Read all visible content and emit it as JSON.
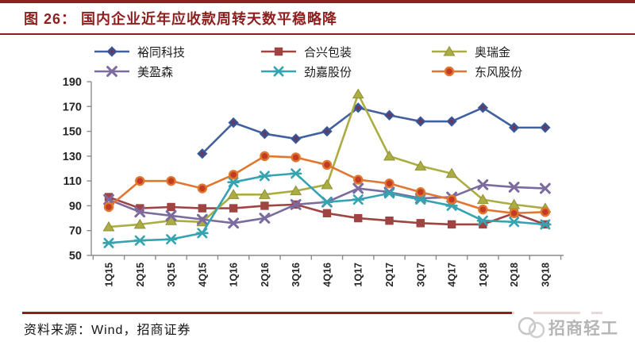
{
  "header": {
    "figure_label": "图 26：",
    "title": "国内企业近年应收款周转天数平稳略降"
  },
  "chart_data": {
    "type": "line",
    "title": "",
    "xlabel": "",
    "ylabel": "",
    "ylim": [
      50,
      190
    ],
    "yticks": [
      50,
      70,
      90,
      110,
      130,
      150,
      170,
      190
    ],
    "grid": false,
    "legend_position": "top",
    "categories": [
      "1Q15",
      "2Q15",
      "3Q15",
      "4Q15",
      "1Q16",
      "2Q16",
      "3Q16",
      "4Q16",
      "1Q17",
      "2Q17",
      "3Q17",
      "4Q17",
      "1Q18",
      "2Q18",
      "3Q18"
    ],
    "series": [
      {
        "name": "裕同科技",
        "color": "#40609f",
        "marker": "diamond",
        "marker_fill": "#3c4f8d",
        "values": [
          null,
          null,
          null,
          132,
          157,
          148,
          144,
          150,
          169,
          163,
          158,
          158,
          169,
          153,
          153
        ]
      },
      {
        "name": "合兴包装",
        "color": "#a04343",
        "marker": "square",
        "marker_fill": "#a04343",
        "values": [
          97,
          88,
          89,
          88,
          88,
          90,
          91,
          84,
          80,
          78,
          76,
          75,
          75,
          84,
          75
        ]
      },
      {
        "name": "奥瑞金",
        "color": "#abad42",
        "marker": "triangle",
        "marker_fill": "#abad42",
        "values": [
          73,
          75,
          78,
          77,
          99,
          99,
          102,
          107,
          180,
          130,
          122,
          116,
          95,
          91,
          88
        ]
      },
      {
        "name": "美盈森",
        "color": "#7c6b9e",
        "marker": "x",
        "marker_fill": "#7c6b9e",
        "values": [
          95,
          85,
          82,
          79,
          76,
          80,
          91,
          93,
          104,
          101,
          96,
          97,
          107,
          105,
          104
        ]
      },
      {
        "name": "劲嘉股份",
        "color": "#35a3b0",
        "marker": "asterisk",
        "marker_fill": "#35a3b0",
        "values": [
          60,
          62,
          63,
          68,
          109,
          114,
          116,
          93,
          95,
          100,
          95,
          90,
          78,
          77,
          75
        ]
      },
      {
        "name": "东风股份",
        "color": "#e0762f",
        "marker": "circle",
        "marker_fill": "#c23b22",
        "values": [
          89,
          110,
          110,
          104,
          115,
          130,
          129,
          123,
          111,
          108,
          101,
          95,
          87,
          84,
          85
        ]
      }
    ]
  },
  "footer": {
    "source": "资料来源：Wind，招商证券"
  },
  "watermark": {
    "text": "招商轻工"
  }
}
